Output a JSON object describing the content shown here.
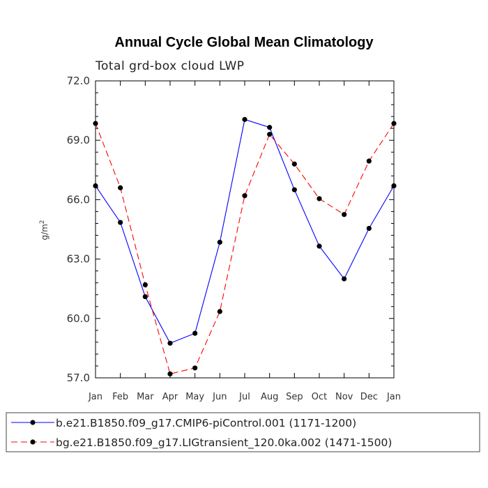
{
  "chart_data": {
    "type": "line",
    "title": "Annual Cycle Global Mean Climatology",
    "subtitle": "Total grd-box cloud LWP",
    "ylabel": "g/m",
    "ylabel_sup": "2",
    "xlabel": "",
    "categories": [
      "Jan",
      "Feb",
      "Mar",
      "Apr",
      "May",
      "Jun",
      "Jul",
      "Aug",
      "Sep",
      "Oct",
      "Nov",
      "Dec",
      "Jan"
    ],
    "ylim": [
      57.0,
      72.0
    ],
    "yticks": [
      "57.0",
      "60.0",
      "63.0",
      "66.0",
      "69.0",
      "72.0"
    ],
    "ytick_values": [
      57,
      60,
      63,
      66,
      69,
      72
    ],
    "series": [
      {
        "name": "b.e21.B1850.f09_g17.CMIP6-piControl.001 (1171-1200)",
        "color": "#0000ff",
        "dash": "solid",
        "values": [
          66.7,
          64.85,
          61.1,
          58.75,
          59.25,
          63.85,
          70.05,
          69.65,
          66.5,
          63.65,
          62.0,
          64.55,
          66.7
        ]
      },
      {
        "name": "bg.e21.B1850.f09_g17.LIGtransient_120.0ka.002 (1471-1500)",
        "color": "#ff0000",
        "dash": "dashed",
        "values": [
          69.85,
          66.6,
          61.7,
          57.2,
          57.5,
          60.35,
          66.2,
          69.3,
          67.8,
          66.05,
          65.25,
          67.95,
          69.85
        ]
      }
    ],
    "legend_position": "bottom"
  }
}
